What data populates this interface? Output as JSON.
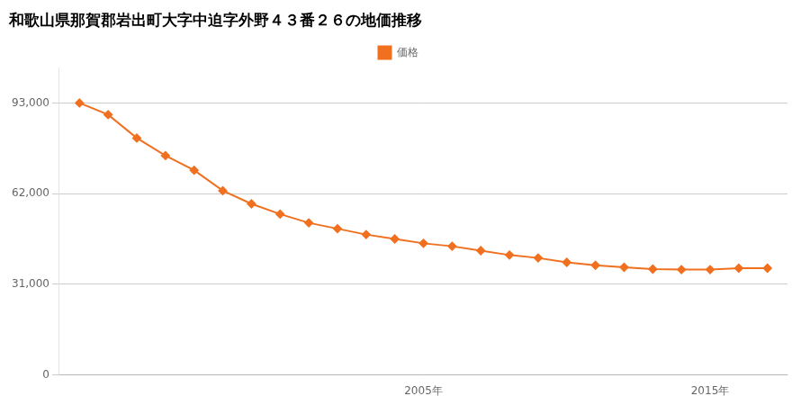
{
  "chart_data": {
    "type": "line",
    "title": "和歌山県那賀郡岩出町大字中迫字外野４３番２６の地価推移",
    "x": [
      1993,
      1994,
      1995,
      1996,
      1997,
      1998,
      1999,
      2000,
      2001,
      2002,
      2003,
      2004,
      2005,
      2006,
      2007,
      2008,
      2009,
      2010,
      2011,
      2012,
      2013,
      2014,
      2015,
      2016,
      2017
    ],
    "series": [
      {
        "name": "価格",
        "color": "#f07020",
        "marker": "diamond",
        "values": [
          93000,
          89000,
          81000,
          75000,
          70000,
          63000,
          58500,
          55000,
          52000,
          50000,
          48000,
          46500,
          45000,
          44000,
          42500,
          41000,
          40000,
          38500,
          37500,
          36800,
          36200,
          36000,
          36000,
          36500,
          36500
        ]
      }
    ],
    "xlim": [
      1992.3,
      2017.7
    ],
    "xticks": [
      {
        "value": 2005,
        "label": "2005年"
      },
      {
        "value": 2015,
        "label": "2015年"
      }
    ],
    "ylim": [
      0,
      105000
    ],
    "yticks": [
      0,
      {
        "value": 31000,
        "label": "31,000"
      },
      {
        "value": 62000,
        "label": "62,000"
      },
      {
        "value": 93000,
        "label": "93,000"
      }
    ],
    "grid": "y",
    "legend": "top"
  }
}
